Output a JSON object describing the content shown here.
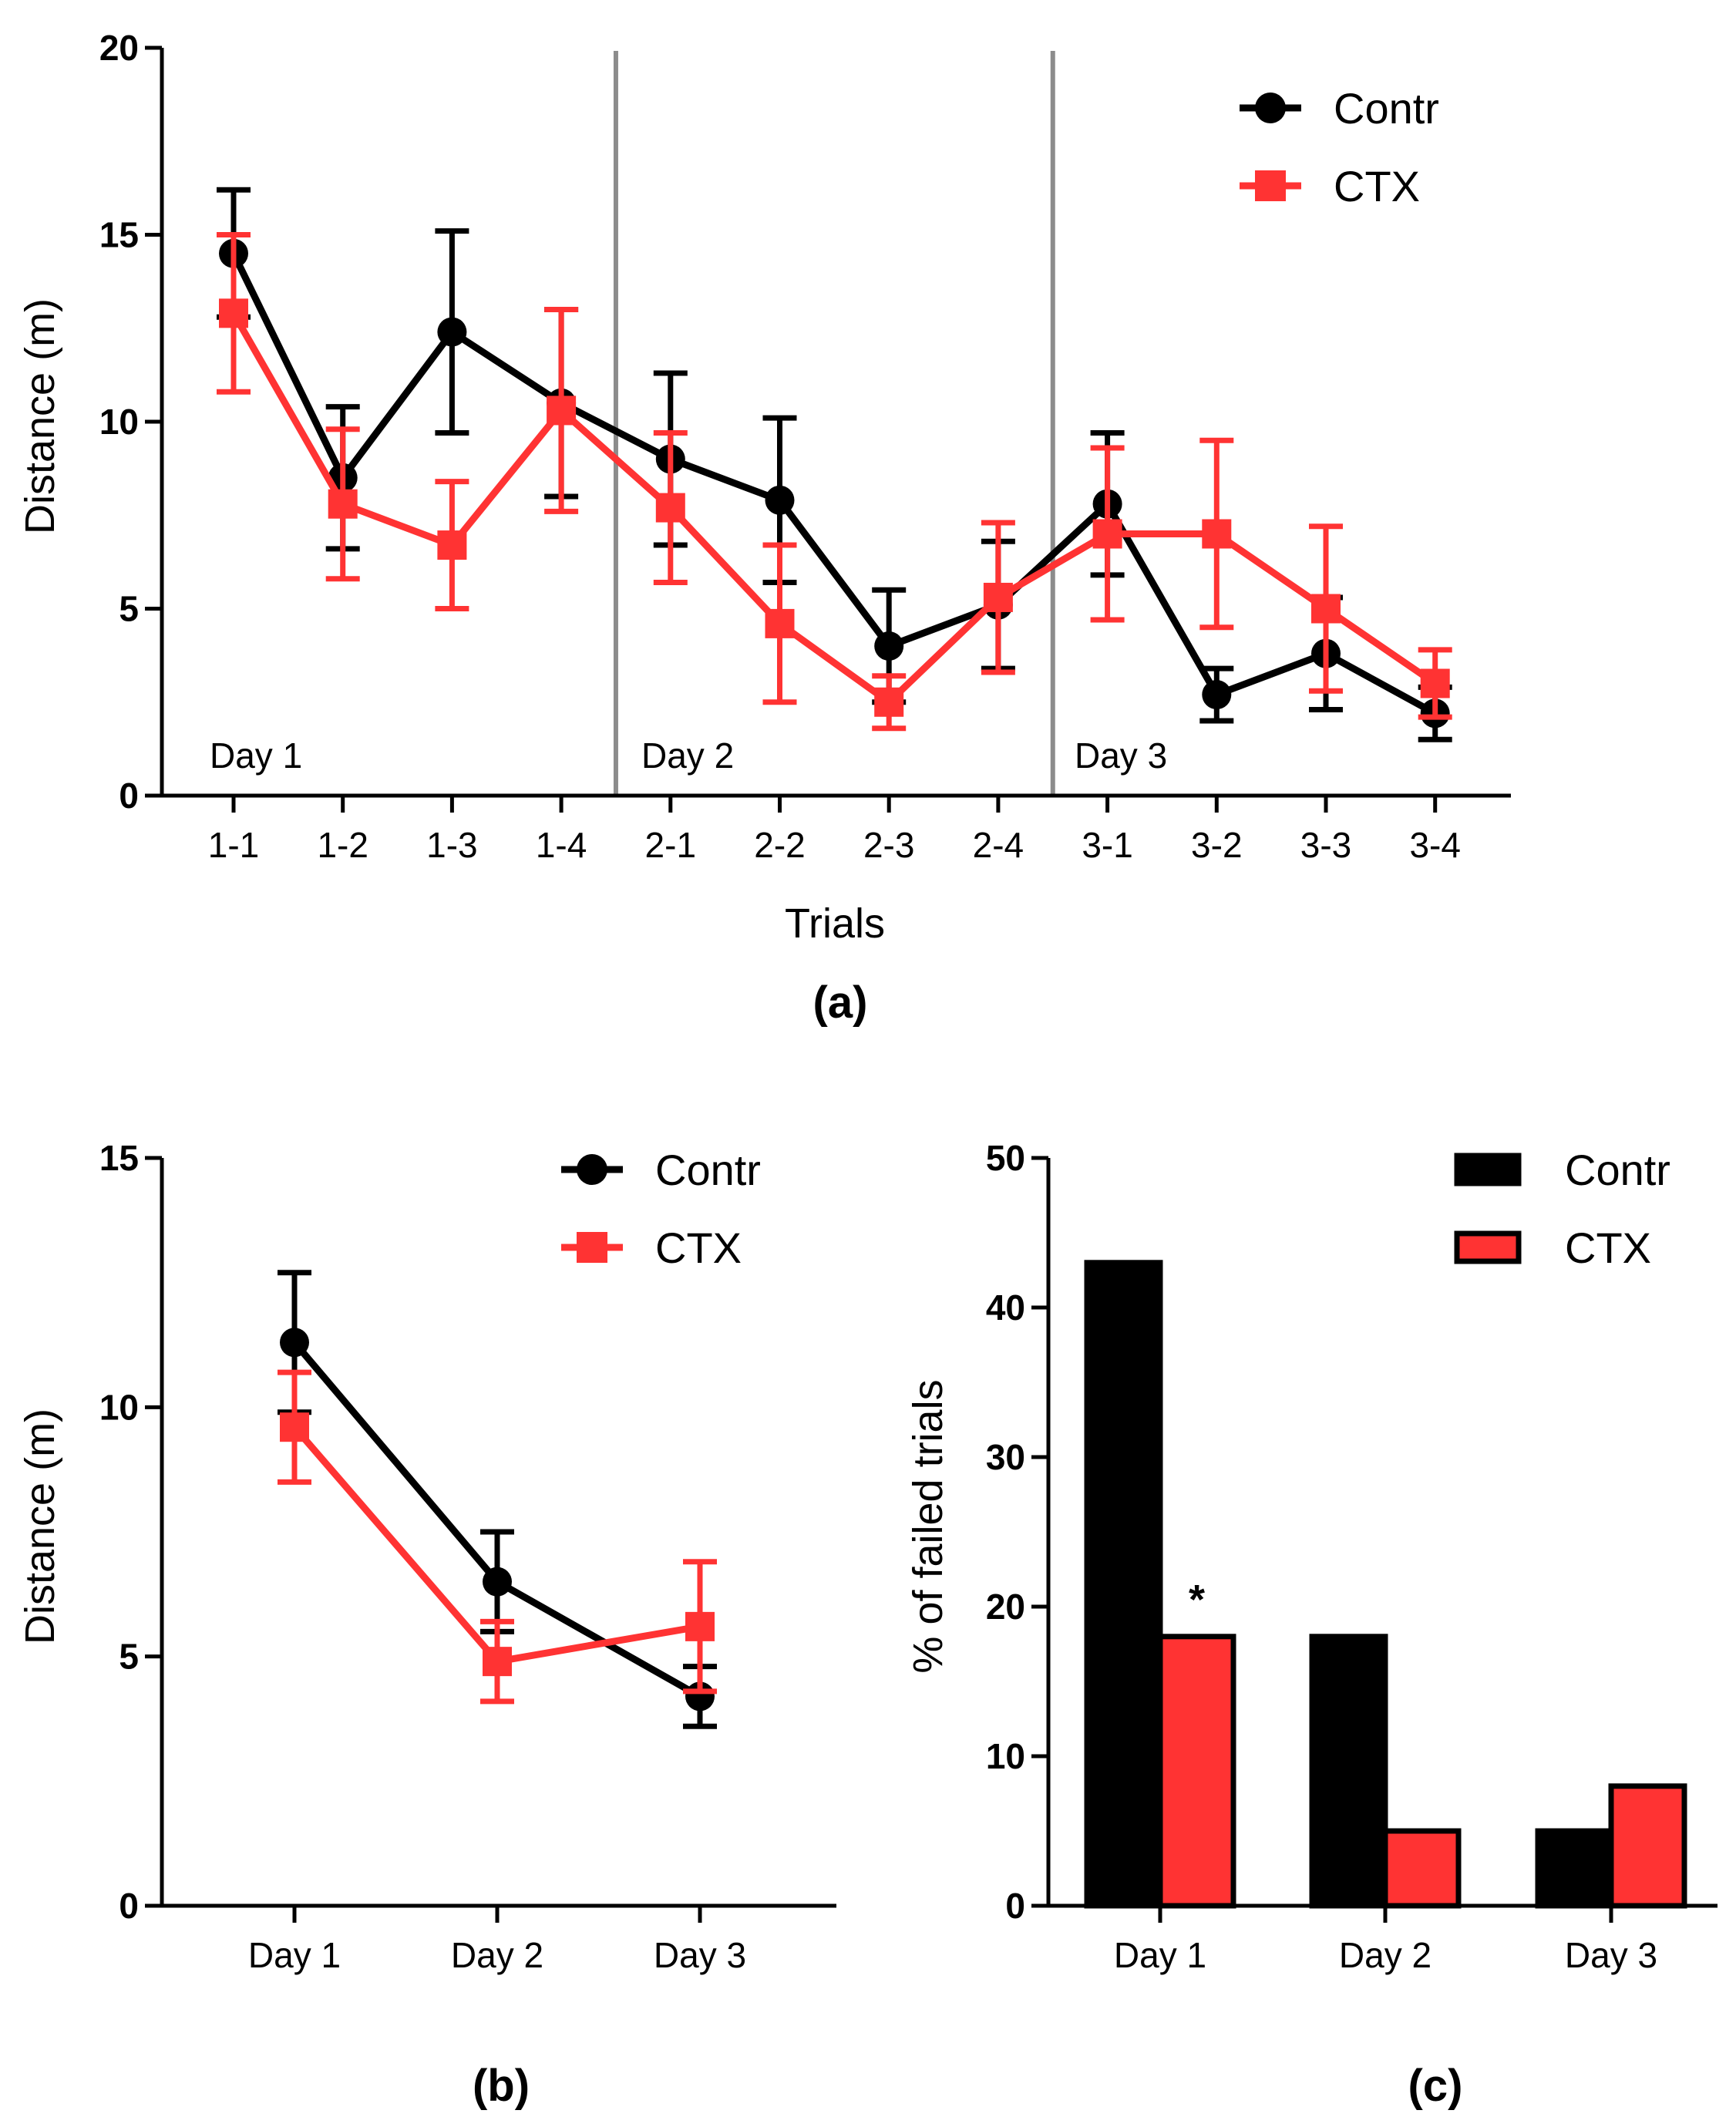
{
  "colors": {
    "contr": "#000000",
    "ctx": "#ff3333",
    "divider": "#8c8c8c",
    "axis": "#000000"
  },
  "chart_data": [
    {
      "id": "a",
      "type": "line",
      "panel_label": "(a)",
      "xlabel": "Trials",
      "ylabel": "Distance (m)",
      "ylim": [
        0,
        20
      ],
      "yticks": [
        "0",
        "5",
        "10",
        "15",
        "20"
      ],
      "categories": [
        "1-1",
        "1-2",
        "1-3",
        "1-4",
        "2-1",
        "2-2",
        "2-3",
        "2-4",
        "3-1",
        "3-2",
        "3-3",
        "3-4"
      ],
      "day_labels": [
        "Day 1",
        "Day 2",
        "Day 3"
      ],
      "series": [
        {
          "name": "Contr",
          "marker": "circle",
          "values": [
            14.5,
            8.5,
            12.4,
            10.5,
            9.0,
            7.9,
            4.0,
            5.1,
            7.8,
            2.7,
            3.8,
            2.2
          ],
          "errors": [
            1.7,
            1.9,
            2.7,
            2.5,
            2.3,
            2.2,
            1.5,
            1.7,
            1.9,
            0.7,
            1.5,
            0.7
          ]
        },
        {
          "name": "CTX",
          "marker": "square",
          "values": [
            12.9,
            7.8,
            6.7,
            10.3,
            7.7,
            4.6,
            2.5,
            5.3,
            7.0,
            7.0,
            5.0,
            3.0
          ],
          "errors": [
            2.1,
            2.0,
            1.7,
            2.7,
            2.0,
            2.1,
            0.7,
            2.0,
            2.3,
            2.5,
            2.2,
            0.9
          ]
        }
      ],
      "legend": [
        "Contr",
        "CTX"
      ],
      "legend_position": "top-right"
    },
    {
      "id": "b",
      "type": "line",
      "panel_label": "(b)",
      "xlabel": "",
      "ylabel": "Distance (m)",
      "ylim": [
        0,
        15
      ],
      "yticks": [
        "0",
        "5",
        "10",
        "15"
      ],
      "categories": [
        "Day 1",
        "Day 2",
        "Day 3"
      ],
      "series": [
        {
          "name": "Contr",
          "marker": "circle",
          "values": [
            11.3,
            6.5,
            4.2
          ],
          "errors": [
            1.4,
            1.0,
            0.6
          ]
        },
        {
          "name": "CTX",
          "marker": "square",
          "values": [
            9.6,
            4.9,
            5.6
          ],
          "errors": [
            1.1,
            0.8,
            1.3
          ]
        }
      ],
      "legend": [
        "Contr",
        "CTX"
      ],
      "legend_position": "top-right"
    },
    {
      "id": "c",
      "type": "bar",
      "panel_label": "(c)",
      "xlabel": "",
      "ylabel": "% of failed trials",
      "ylim": [
        0,
        50
      ],
      "yticks": [
        "0",
        "10",
        "20",
        "30",
        "40",
        "50"
      ],
      "categories": [
        "Day 1",
        "Day 2",
        "Day 3"
      ],
      "series": [
        {
          "name": "Contr",
          "values": [
            43,
            18,
            5
          ]
        },
        {
          "name": "CTX",
          "values": [
            18,
            5,
            8
          ]
        }
      ],
      "annotations": [
        {
          "category": "Day 1",
          "series": "CTX",
          "text": "*"
        }
      ],
      "legend": [
        "Contr",
        "CTX"
      ],
      "legend_position": "top-right"
    }
  ]
}
